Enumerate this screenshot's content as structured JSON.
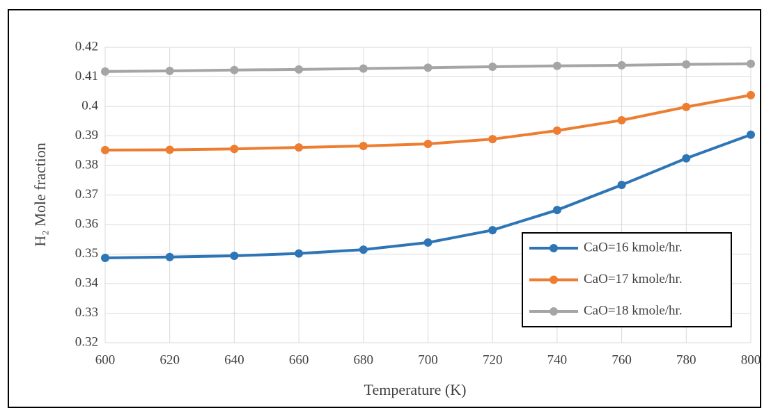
{
  "chart_data": {
    "type": "line",
    "x_label": "Temperature (K)",
    "y_label": "H₂ Mole fraction",
    "x": [
      600,
      620,
      640,
      660,
      680,
      700,
      720,
      740,
      760,
      780,
      800
    ],
    "series": [
      {
        "name": "CaO=16 kmole/hr.",
        "color": "#2e75b6",
        "values": [
          0.3487,
          0.349,
          0.3494,
          0.3502,
          0.3515,
          0.3539,
          0.3581,
          0.3649,
          0.3734,
          0.3824,
          0.3904
        ]
      },
      {
        "name": "CaO=17 kmole/hr.",
        "color": "#ed7d31",
        "values": [
          0.3852,
          0.3853,
          0.3856,
          0.3861,
          0.3866,
          0.3873,
          0.3889,
          0.3918,
          0.3953,
          0.3998,
          0.4038
        ]
      },
      {
        "name": "CaO=18 kmole/hr.",
        "color": "#a5a5a5",
        "values": [
          0.4118,
          0.412,
          0.4123,
          0.4125,
          0.4128,
          0.4131,
          0.4134,
          0.4137,
          0.4139,
          0.4142,
          0.4144
        ]
      }
    ],
    "xlim": [
      600,
      800
    ],
    "xticks": [
      600,
      620,
      640,
      660,
      680,
      700,
      720,
      740,
      760,
      780,
      800
    ],
    "ylim": [
      0.32,
      0.42
    ],
    "yticks": [
      0.32,
      0.33,
      0.34,
      0.35,
      0.36,
      0.37,
      0.38,
      0.39,
      0.4,
      0.41,
      0.42
    ],
    "grid": true,
    "legend": "right"
  }
}
